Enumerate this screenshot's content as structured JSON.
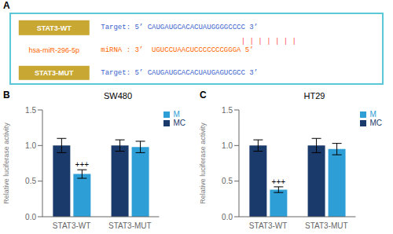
{
  "chart_data": [
    {
      "type": "text",
      "color": "#5bc8d8",
      "annotations": [
        {
          "text": "A"
        },
        {
          "text": "STAT3-WT",
          "color": "#ffffff",
          "background": "#c8a832"
        },
        {
          "text": "Target: 5’ CAUGAUGCACACUAUGGGGCCCC 3’",
          "color": "#3a5fcd"
        },
        {
          "text": "| | | | | | |",
          "color": "#ff4444"
        },
        {
          "text": "hsa-miR-296-5p",
          "color": "#ff6600"
        },
        {
          "text": "miRNA : 3’  UGUCCUAACUCCCCCCCGGGA 5’",
          "color": "#ff6600"
        },
        {
          "text": "STAT3-MUT",
          "color": "#ffffff",
          "background": "#c8a832"
        },
        {
          "text": "Target: 5’ CAUGAUGCACACUAUGAGUCGCC 3’",
          "color": "#3a5fcd"
        }
      ]
    },
    {
      "type": "bar",
      "title": "SW480",
      "categories": [
        "STAT3-WT",
        "STAT3-MUT"
      ],
      "series": [
        {
          "name": "MC",
          "color": "#1a3a6b",
          "values": [
            1.0,
            1.0
          ],
          "errors": [
            0.1,
            0.08
          ]
        },
        {
          "name": "M",
          "color": "#2e9ed6",
          "values": [
            0.6,
            0.98
          ],
          "errors": [
            0.06,
            0.08
          ]
        }
      ],
      "ylabel": "Relative luciferase activity",
      "ylim": [
        0,
        1.5
      ],
      "yticks": [
        {
          "value": 0,
          "label": "0.0"
        },
        0.5,
        {
          "value": 1,
          "label": "1.0"
        },
        1.5
      ],
      "legend": "upper right",
      "annotations": [
        {
          "text": "B"
        },
        {
          "text": "+++",
          "category": "STAT3-WT",
          "series": "M"
        }
      ]
    },
    {
      "type": "bar",
      "title": "HT29",
      "categories": [
        "STAT3-WT",
        "STAT3-MUT"
      ],
      "series": [
        {
          "name": "MC",
          "color": "#1a3a6b",
          "values": [
            1.0,
            1.0
          ],
          "errors": [
            0.08,
            0.1
          ]
        },
        {
          "name": "M",
          "color": "#2e9ed6",
          "values": [
            0.38,
            0.95
          ],
          "errors": [
            0.04,
            0.08
          ]
        }
      ],
      "ylabel": "Relative luciferase activity",
      "ylim": [
        0,
        1.5
      ],
      "yticks": [
        {
          "value": 0,
          "label": "0.0"
        },
        0.5,
        {
          "value": 1,
          "label": "1.0"
        },
        1.5
      ],
      "legend": "upper right",
      "annotations": [
        {
          "text": "C"
        },
        {
          "text": "+++",
          "category": "STAT3-WT",
          "series": "M"
        }
      ]
    }
  ]
}
